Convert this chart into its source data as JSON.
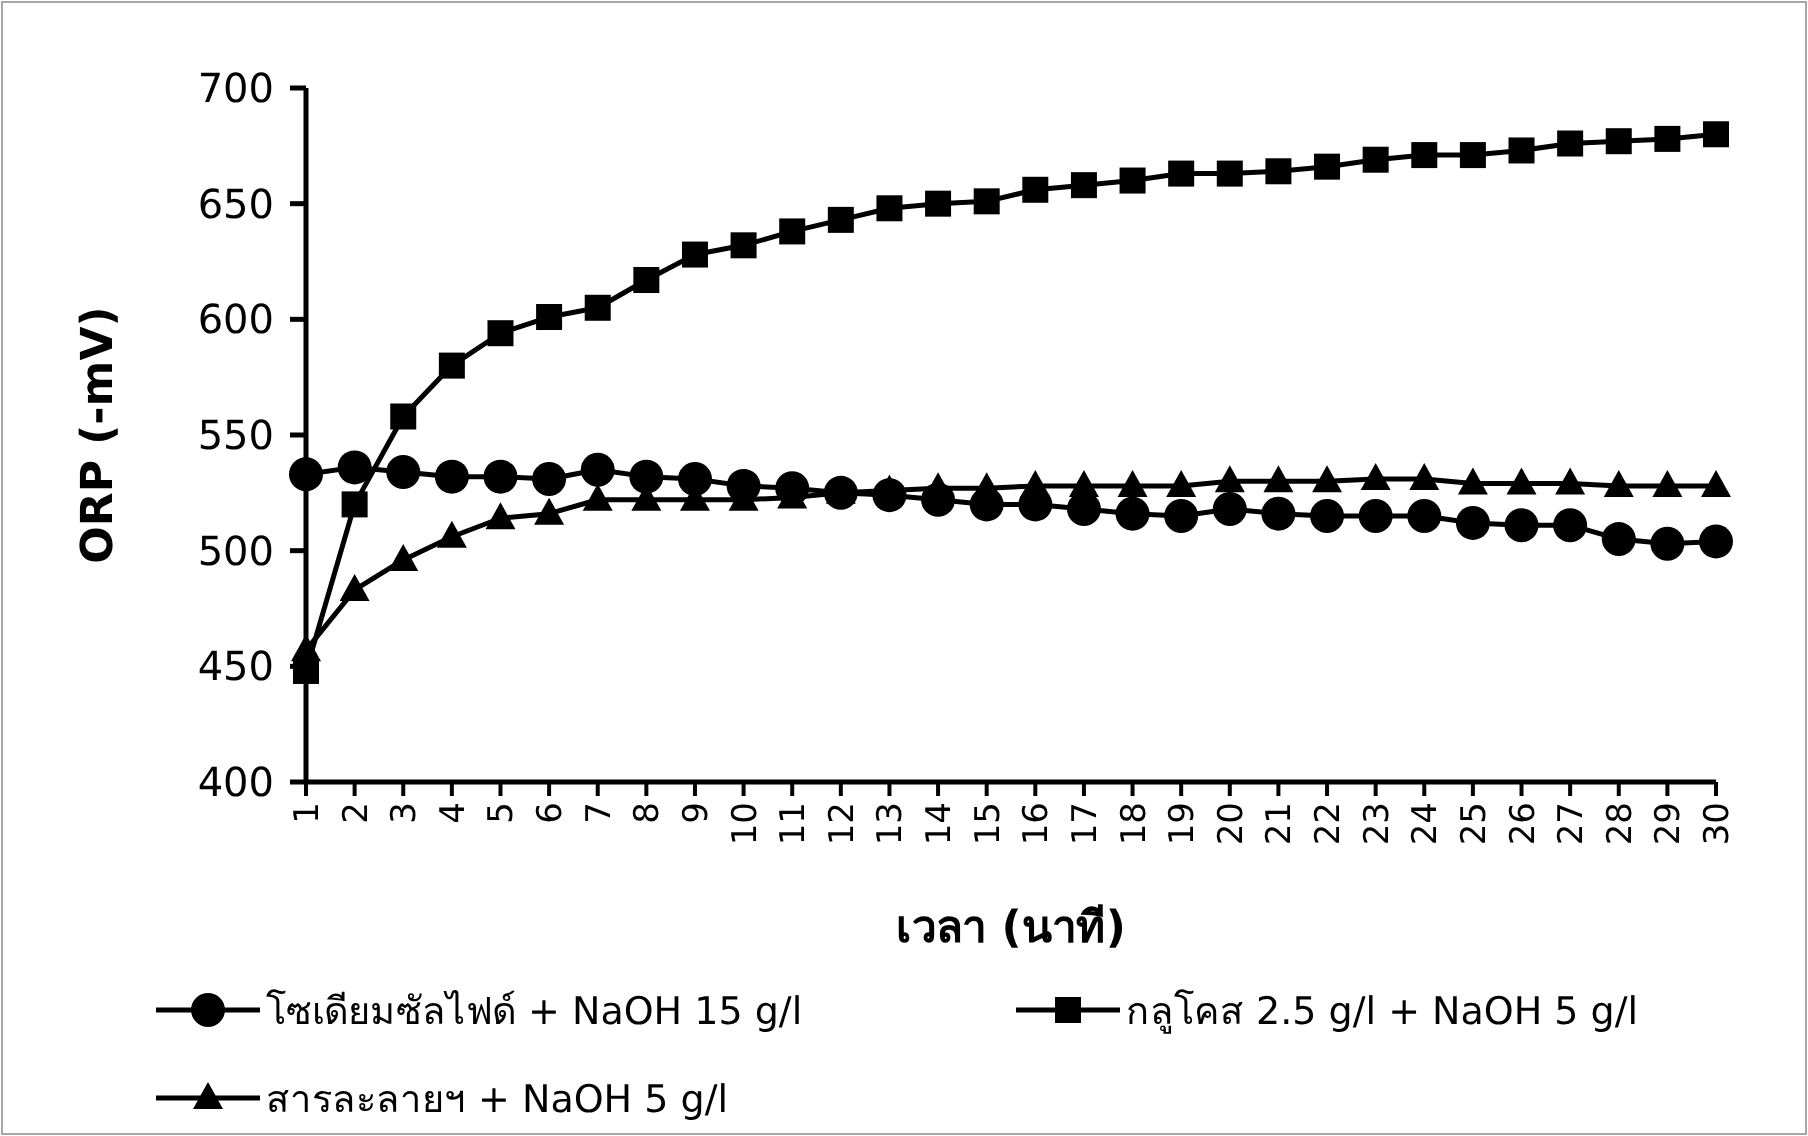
{
  "chart_data": {
    "type": "line",
    "xlabel": "เวลา (นาที)",
    "ylabel": "ORP (-mV)",
    "categories": [
      "1",
      "2",
      "3",
      "4",
      "5",
      "6",
      "7",
      "8",
      "9",
      "10",
      "11",
      "12",
      "13",
      "14",
      "15",
      "16",
      "17",
      "18",
      "19",
      "20",
      "21",
      "22",
      "23",
      "24",
      "25",
      "26",
      "27",
      "28",
      "29",
      "30"
    ],
    "series": [
      {
        "name": "โซเดียมซัลไฟด์ + NaOH 15 g/l",
        "color": "#000000",
        "marker": "circle",
        "values": [
          533,
          536,
          534,
          532,
          532,
          531,
          535,
          532,
          531,
          528,
          527,
          525,
          524,
          522,
          520,
          520,
          518,
          516,
          515,
          518,
          516,
          515,
          515,
          515,
          512,
          511,
          511,
          505,
          503,
          504
        ]
      },
      {
        "name": "กลูโคส 2.5 g/l + NaOH 5 g/l",
        "color": "#000000",
        "marker": "square",
        "values": [
          448,
          520,
          558,
          580,
          594,
          601,
          605,
          617,
          628,
          632,
          638,
          643,
          648,
          650,
          651,
          656,
          658,
          660,
          663,
          663,
          664,
          666,
          669,
          671,
          671,
          673,
          676,
          677,
          678,
          680
        ]
      },
      {
        "name": "สารละลายฯ + NaOH 5 g/l",
        "color": "#000000",
        "marker": "triangle",
        "values": [
          457,
          483,
          496,
          506,
          514,
          516,
          522,
          522,
          522,
          522,
          523,
          525,
          526,
          527,
          527,
          528,
          528,
          528,
          528,
          530,
          530,
          530,
          531,
          531,
          529,
          529,
          529,
          528,
          528,
          528
        ]
      }
    ],
    "ylim": [
      400,
      700
    ],
    "yticks": [
      400,
      450,
      500,
      550,
      600,
      650,
      700
    ],
    "grid": false,
    "legend": "bottom",
    "line_style": "solid"
  }
}
